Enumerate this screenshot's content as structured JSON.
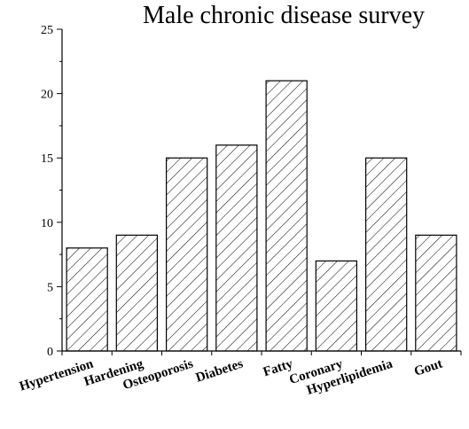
{
  "chart_data": {
    "type": "bar",
    "title": "Male chronic disease survey",
    "xlabel": "",
    "ylabel": "",
    "categories": [
      "Hypertension",
      "Hardening",
      "Osteoporosis",
      "Diabetes",
      "Fatty",
      "Coronary",
      "Hyperlipidemia",
      "Gout"
    ],
    "values": [
      8,
      9,
      15,
      16,
      21,
      7,
      15,
      9
    ],
    "ylim": [
      0,
      25
    ],
    "yticks": [
      0,
      5,
      10,
      15,
      20,
      25
    ],
    "grid": false,
    "bar_fill": "diagonal hatch",
    "colors": {
      "bar_stroke": "#000000",
      "hatch": "#000000",
      "background": "#ffffff"
    }
  }
}
